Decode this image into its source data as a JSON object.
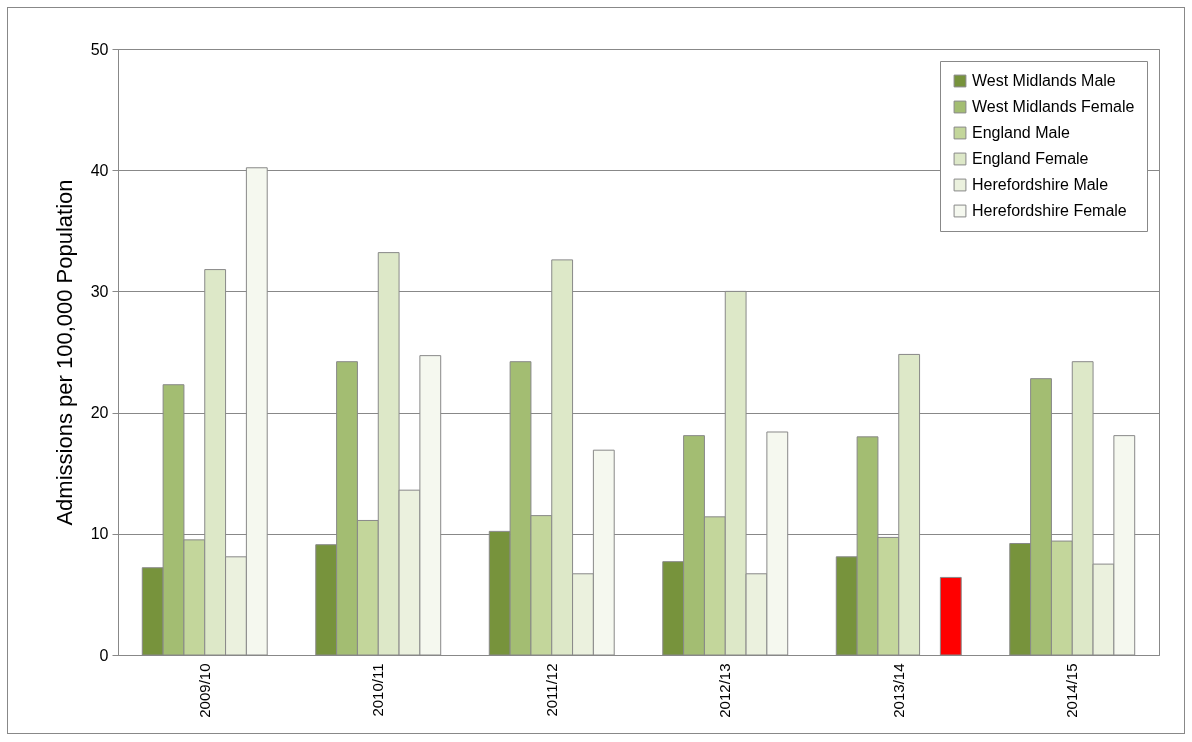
{
  "chart_data": {
    "type": "bar",
    "ylabel": "Admissions per 100,000 Population",
    "categories": [
      "2009/10",
      "2010/11",
      "2011/12",
      "2012/13",
      "2013/14",
      "2014/15"
    ],
    "series": [
      {
        "name": "West Midlands Male",
        "color": "#77933c",
        "values": [
          7.2,
          9.1,
          10.2,
          7.7,
          8.1,
          9.2
        ]
      },
      {
        "name": "West Midlands Female",
        "color": "#a3bd72",
        "values": [
          22.3,
          24.2,
          24.2,
          18.1,
          18.0,
          22.8
        ]
      },
      {
        "name": "England Male",
        "color": "#c3d69b",
        "values": [
          9.5,
          11.1,
          11.5,
          11.4,
          9.7,
          9.4
        ]
      },
      {
        "name": "England Female",
        "color": "#dde8c8",
        "values": [
          31.8,
          33.2,
          32.6,
          30.0,
          24.8,
          24.2
        ]
      },
      {
        "name": "Herefordshire Male",
        "color": "#ebf1de",
        "values": [
          8.1,
          13.6,
          6.7,
          6.7,
          null,
          7.5
        ]
      },
      {
        "name": "Herefordshire Female",
        "color": "#f5f8ef",
        "colors": [
          "#f5f8ef",
          "#f5f8ef",
          "#f5f8ef",
          "#f5f8ef",
          "#ff0000",
          "#f5f8ef"
        ],
        "values": [
          40.2,
          24.7,
          16.9,
          18.4,
          6.4,
          18.1
        ]
      }
    ],
    "ylim": [
      0,
      50
    ],
    "yticks": [
      0,
      10,
      20,
      30,
      40,
      50
    ],
    "grid": "y",
    "legend": "top right"
  }
}
